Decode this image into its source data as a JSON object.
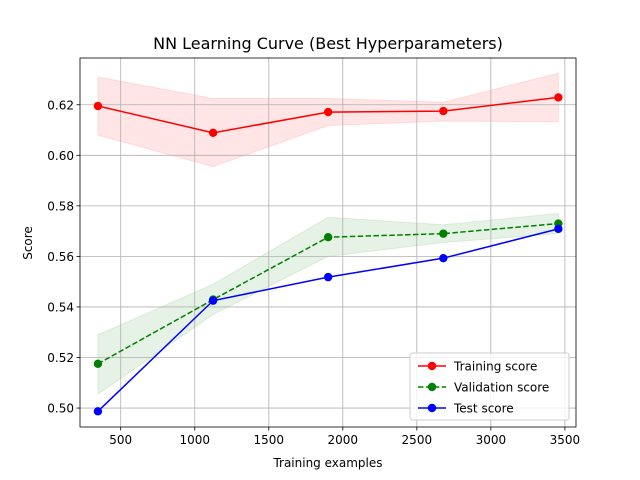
{
  "chart_data": {
    "type": "line",
    "title": "NN Learning Curve (Best Hyperparameters)",
    "xlabel": "Training examples",
    "ylabel": "Score",
    "xlim": [
      225,
      3575
    ],
    "ylim": [
      0.4925,
      0.6385
    ],
    "xticks": [
      500,
      1000,
      1500,
      2000,
      2500,
      3000,
      3500
    ],
    "yticks": [
      0.5,
      0.52,
      0.54,
      0.56,
      0.58,
      0.6,
      0.62
    ],
    "grid": true,
    "legend_position": "lower-right",
    "x": [
      346,
      1124,
      1901,
      2679,
      3456
    ],
    "series": [
      {
        "name": "Training score",
        "color": "#ff0000",
        "linestyle": "solid",
        "marker": "circle",
        "values": [
          0.6195,
          0.6089,
          0.6171,
          0.6175,
          0.6229
        ],
        "band_upper": [
          0.631,
          0.6225,
          0.6225,
          0.621,
          0.6325
        ],
        "band_lower": [
          0.608,
          0.5955,
          0.6118,
          0.6135,
          0.6133
        ],
        "band_color": "#ff0000"
      },
      {
        "name": "Validation score",
        "color": "#008000",
        "linestyle": "dashed",
        "marker": "circle",
        "values": [
          0.5175,
          0.5429,
          0.5676,
          0.569,
          0.573
        ],
        "band_upper": [
          0.529,
          0.549,
          0.5755,
          0.5725,
          0.577
        ],
        "band_lower": [
          0.5055,
          0.537,
          0.56,
          0.5655,
          0.569
        ],
        "band_color": "#008000"
      },
      {
        "name": "Test score",
        "color": "#0000ff",
        "linestyle": "solid",
        "marker": "circle",
        "values": [
          0.4987,
          0.5425,
          0.5518,
          0.5593,
          0.5709
        ]
      }
    ]
  }
}
